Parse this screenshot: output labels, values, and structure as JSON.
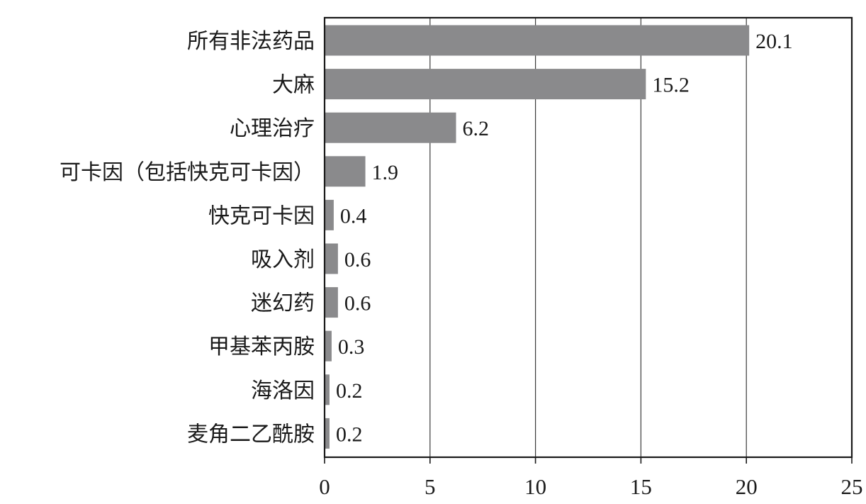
{
  "chart_data": {
    "type": "bar",
    "orientation": "horizontal",
    "title": "",
    "xlabel": "",
    "ylabel": "",
    "categories": [
      "所有非法药品",
      "大麻",
      "心理治疗",
      "可卡因（包括快克可卡因）",
      "快克可卡因",
      "吸入剂",
      "迷幻药",
      "甲基苯丙胺",
      "海洛因",
      "麦角二乙酰胺"
    ],
    "values": [
      20.1,
      15.2,
      6.2,
      1.9,
      0.4,
      0.6,
      0.6,
      0.3,
      0.2,
      0.2
    ],
    "value_labels": [
      "20.1",
      "15.2",
      "6.2",
      "1.9",
      "0.4",
      "0.6",
      "0.6",
      "0.3",
      "0.2",
      "0.2"
    ],
    "xlim": [
      0,
      25
    ],
    "xticks": [
      0,
      5,
      10,
      15,
      20,
      25
    ],
    "xtick_labels": [
      "0",
      "5",
      "10",
      "15",
      "20",
      "25"
    ],
    "grid": "vertical",
    "legend": "none",
    "colors": {
      "bar": "#8a8a8c",
      "axis": "#1a1a1a",
      "grid": "#3a3a3a"
    }
  }
}
